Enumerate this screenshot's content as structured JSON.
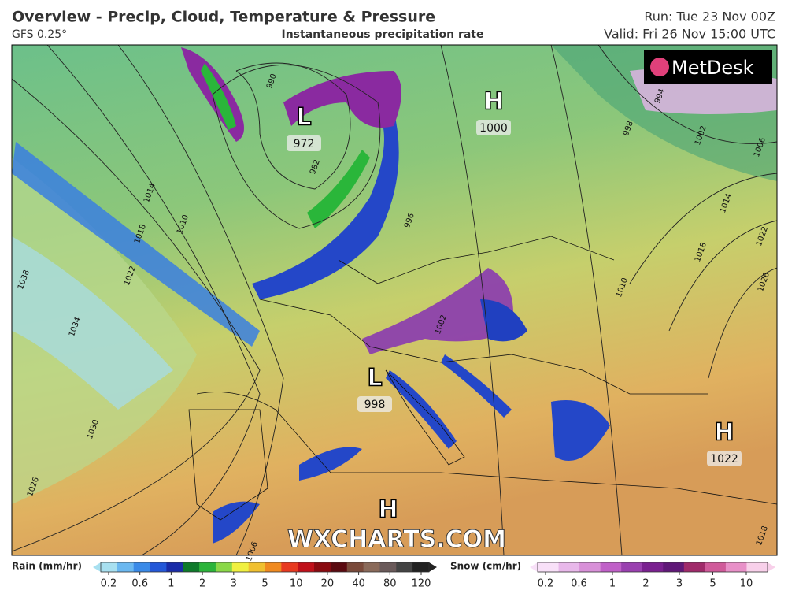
{
  "header": {
    "title": "Overview - Precip, Cloud, Temperature & Pressure",
    "model": "GFS 0.25°",
    "subtitle": "Instantaneous precipitation rate",
    "run": "Run: Tue 23 Nov 00Z",
    "valid": "Valid: Fri 26 Nov 15:00 UTC"
  },
  "logo": "MetDesk",
  "watermark": "WXCHARTS.COM",
  "pressure_centers": [
    {
      "type": "L",
      "value": "972"
    },
    {
      "type": "H",
      "value": "1000"
    },
    {
      "type": "L",
      "value": "998"
    },
    {
      "type": "H",
      "value": "1022"
    },
    {
      "type": "H"
    }
  ],
  "isobar_labels": [
    "990",
    "982",
    "1014",
    "1010",
    "1018",
    "1022",
    "1038",
    "1034",
    "1030",
    "1026",
    "994",
    "998",
    "1002",
    "1006",
    "1014",
    "1018",
    "1022",
    "1026",
    "1010",
    "1002",
    "996",
    "1006",
    "1018"
  ],
  "legend": {
    "rain": {
      "label": "Rain (mm/hr)",
      "ticks": [
        "0.2",
        "0.6",
        "1",
        "2",
        "3",
        "5",
        "10",
        "20",
        "40",
        "80",
        "120"
      ]
    },
    "snow": {
      "label": "Snow (cm/hr)",
      "ticks": [
        "0.2",
        "0.6",
        "1",
        "2",
        "3",
        "5",
        "10"
      ]
    }
  }
}
